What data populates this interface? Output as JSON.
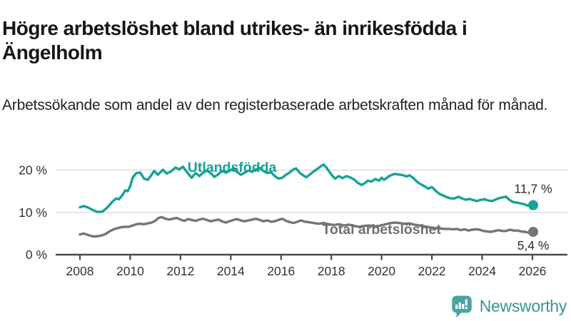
{
  "header": {
    "title": "Högre arbetslöshet bland utrikes- än inrikesfödda i Ängelholm",
    "subtitle": "Arbetssökande som andel av den registerbaserade arbetskraften månad för månad."
  },
  "chart_data": {
    "type": "line",
    "title": "Högre arbetslöshet bland utrikes- än inrikesfödda i Ängelholm",
    "xlabel": "",
    "ylabel": "",
    "grid": "horizontal",
    "x_axis": {
      "ticks": [
        2008,
        2010,
        2012,
        2014,
        2016,
        2018,
        2020,
        2022,
        2024,
        2026
      ],
      "range": [
        2007.0,
        2027.4
      ]
    },
    "y_axis": {
      "tick_values": [
        0,
        10,
        20
      ],
      "tick_labels": [
        "0 %",
        "10 %",
        "20 %"
      ],
      "range": [
        0,
        22
      ]
    },
    "series": [
      {
        "name": "Utlandsfödda",
        "color": "#16a298",
        "end_label": "11,7 %",
        "end_value": 11.7,
        "label_pos": {
          "x": 2014.05,
          "y": 19.6
        },
        "points": [
          [
            2008.0,
            11.2
          ],
          [
            2008.15,
            11.5
          ],
          [
            2008.3,
            11.2
          ],
          [
            2008.5,
            10.6
          ],
          [
            2008.7,
            10.1
          ],
          [
            2008.9,
            10.2
          ],
          [
            2009.1,
            11.2
          ],
          [
            2009.3,
            12.6
          ],
          [
            2009.45,
            13.3
          ],
          [
            2009.55,
            13.1
          ],
          [
            2009.7,
            14.2
          ],
          [
            2009.8,
            15.2
          ],
          [
            2009.9,
            15.0
          ],
          [
            2010.0,
            16.2
          ],
          [
            2010.1,
            18.3
          ],
          [
            2010.25,
            19.3
          ],
          [
            2010.4,
            19.4
          ],
          [
            2010.55,
            18.0
          ],
          [
            2010.7,
            17.7
          ],
          [
            2010.85,
            18.9
          ],
          [
            2010.95,
            19.8
          ],
          [
            2011.1,
            18.9
          ],
          [
            2011.3,
            20.1
          ],
          [
            2011.45,
            19.2
          ],
          [
            2011.6,
            19.6
          ],
          [
            2011.8,
            20.6
          ],
          [
            2011.95,
            20.2
          ],
          [
            2012.1,
            20.8
          ],
          [
            2012.3,
            19.2
          ],
          [
            2012.45,
            18.2
          ],
          [
            2012.6,
            19.3
          ],
          [
            2012.75,
            18.6
          ],
          [
            2012.9,
            19.4
          ],
          [
            2013.05,
            19.9
          ],
          [
            2013.2,
            19.3
          ],
          [
            2013.35,
            18.4
          ],
          [
            2013.5,
            19.0
          ],
          [
            2013.65,
            19.8
          ],
          [
            2013.8,
            19.4
          ],
          [
            2013.95,
            19.8
          ],
          [
            2014.1,
            20.4
          ],
          [
            2014.25,
            19.6
          ],
          [
            2014.4,
            18.9
          ],
          [
            2014.55,
            19.4
          ],
          [
            2014.7,
            19.9
          ],
          [
            2014.85,
            19.6
          ],
          [
            2015.0,
            20.2
          ],
          [
            2015.15,
            20.5
          ],
          [
            2015.3,
            19.8
          ],
          [
            2015.45,
            19.3
          ],
          [
            2015.6,
            19.5
          ],
          [
            2015.75,
            18.6
          ],
          [
            2015.9,
            18.0
          ],
          [
            2016.05,
            18.2
          ],
          [
            2016.2,
            18.9
          ],
          [
            2016.35,
            19.5
          ],
          [
            2016.5,
            20.2
          ],
          [
            2016.6,
            20.4
          ],
          [
            2016.75,
            19.3
          ],
          [
            2016.9,
            18.7
          ],
          [
            2017.0,
            18.3
          ],
          [
            2017.15,
            19.0
          ],
          [
            2017.3,
            19.7
          ],
          [
            2017.45,
            20.3
          ],
          [
            2017.6,
            21.0
          ],
          [
            2017.7,
            21.3
          ],
          [
            2017.8,
            20.6
          ],
          [
            2017.95,
            19.4
          ],
          [
            2018.05,
            18.6
          ],
          [
            2018.15,
            18.0
          ],
          [
            2018.3,
            18.6
          ],
          [
            2018.45,
            18.1
          ],
          [
            2018.6,
            18.6
          ],
          [
            2018.75,
            18.3
          ],
          [
            2018.9,
            17.8
          ],
          [
            2019.05,
            17.0
          ],
          [
            2019.2,
            16.5
          ],
          [
            2019.3,
            16.8
          ],
          [
            2019.45,
            17.5
          ],
          [
            2019.6,
            17.3
          ],
          [
            2019.75,
            17.9
          ],
          [
            2019.9,
            17.5
          ],
          [
            2020.0,
            18.2
          ],
          [
            2020.1,
            17.7
          ],
          [
            2020.3,
            18.6
          ],
          [
            2020.5,
            19.1
          ],
          [
            2020.65,
            19.0
          ],
          [
            2020.85,
            18.8
          ],
          [
            2021.0,
            18.5
          ],
          [
            2021.1,
            18.8
          ],
          [
            2021.25,
            18.2
          ],
          [
            2021.4,
            17.3
          ],
          [
            2021.55,
            16.7
          ],
          [
            2021.7,
            16.2
          ],
          [
            2021.85,
            15.6
          ],
          [
            2022.0,
            16.0
          ],
          [
            2022.15,
            15.1
          ],
          [
            2022.3,
            14.4
          ],
          [
            2022.45,
            14.0
          ],
          [
            2022.6,
            13.6
          ],
          [
            2022.75,
            13.3
          ],
          [
            2022.9,
            13.3
          ],
          [
            2023.05,
            13.7
          ],
          [
            2023.2,
            13.3
          ],
          [
            2023.35,
            13.0
          ],
          [
            2023.5,
            13.2
          ],
          [
            2023.65,
            12.9
          ],
          [
            2023.8,
            12.7
          ],
          [
            2023.95,
            13.0
          ],
          [
            2024.1,
            13.1
          ],
          [
            2024.25,
            12.8
          ],
          [
            2024.4,
            12.7
          ],
          [
            2024.55,
            13.1
          ],
          [
            2024.7,
            13.4
          ],
          [
            2024.85,
            13.6
          ],
          [
            2024.95,
            13.7
          ],
          [
            2025.1,
            12.9
          ],
          [
            2025.25,
            12.4
          ],
          [
            2025.4,
            12.3
          ],
          [
            2025.55,
            12.1
          ],
          [
            2025.7,
            11.9
          ],
          [
            2025.8,
            11.6
          ],
          [
            2025.9,
            11.8
          ],
          [
            2026.03,
            11.7
          ]
        ]
      },
      {
        "name": "Total arbetslöshet",
        "color": "#757479",
        "label_color": "#6f6e74",
        "end_label": "5,4 %",
        "end_value": 5.4,
        "label_pos": {
          "x": 2020.0,
          "y": 4.9
        },
        "points": [
          [
            2008.0,
            4.8
          ],
          [
            2008.15,
            5.0
          ],
          [
            2008.3,
            4.7
          ],
          [
            2008.45,
            4.4
          ],
          [
            2008.6,
            4.3
          ],
          [
            2008.75,
            4.4
          ],
          [
            2008.9,
            4.6
          ],
          [
            2009.05,
            5.0
          ],
          [
            2009.2,
            5.6
          ],
          [
            2009.35,
            6.0
          ],
          [
            2009.5,
            6.3
          ],
          [
            2009.65,
            6.5
          ],
          [
            2009.8,
            6.6
          ],
          [
            2009.95,
            6.6
          ],
          [
            2010.1,
            6.9
          ],
          [
            2010.25,
            7.2
          ],
          [
            2010.4,
            7.3
          ],
          [
            2010.55,
            7.2
          ],
          [
            2010.7,
            7.4
          ],
          [
            2010.85,
            7.6
          ],
          [
            2011.0,
            8.0
          ],
          [
            2011.1,
            8.6
          ],
          [
            2011.25,
            8.9
          ],
          [
            2011.4,
            8.5
          ],
          [
            2011.55,
            8.3
          ],
          [
            2011.7,
            8.5
          ],
          [
            2011.85,
            8.7
          ],
          [
            2012.0,
            8.3
          ],
          [
            2012.15,
            8.0
          ],
          [
            2012.3,
            8.4
          ],
          [
            2012.45,
            8.2
          ],
          [
            2012.6,
            8.0
          ],
          [
            2012.75,
            8.3
          ],
          [
            2012.9,
            8.5
          ],
          [
            2013.05,
            8.2
          ],
          [
            2013.2,
            7.9
          ],
          [
            2013.35,
            8.1
          ],
          [
            2013.5,
            8.3
          ],
          [
            2013.65,
            7.9
          ],
          [
            2013.8,
            7.6
          ],
          [
            2013.95,
            7.9
          ],
          [
            2014.1,
            8.2
          ],
          [
            2014.25,
            8.4
          ],
          [
            2014.4,
            8.1
          ],
          [
            2014.55,
            7.9
          ],
          [
            2014.7,
            8.1
          ],
          [
            2014.85,
            8.3
          ],
          [
            2015.0,
            8.5
          ],
          [
            2015.15,
            8.2
          ],
          [
            2015.3,
            7.9
          ],
          [
            2015.45,
            8.1
          ],
          [
            2015.6,
            7.8
          ],
          [
            2015.75,
            7.9
          ],
          [
            2015.9,
            8.2
          ],
          [
            2016.05,
            8.5
          ],
          [
            2016.2,
            8.0
          ],
          [
            2016.35,
            7.7
          ],
          [
            2016.5,
            7.5
          ],
          [
            2016.65,
            7.8
          ],
          [
            2016.8,
            8.1
          ],
          [
            2016.95,
            7.8
          ],
          [
            2017.1,
            7.7
          ],
          [
            2017.3,
            7.5
          ],
          [
            2017.5,
            7.3
          ],
          [
            2017.7,
            7.5
          ],
          [
            2017.9,
            7.2
          ],
          [
            2018.1,
            7.0
          ],
          [
            2018.3,
            7.2
          ],
          [
            2018.5,
            6.9
          ],
          [
            2018.7,
            7.1
          ],
          [
            2018.9,
            6.8
          ],
          [
            2019.1,
            6.6
          ],
          [
            2019.3,
            6.8
          ],
          [
            2019.5,
            6.9
          ],
          [
            2019.7,
            6.7
          ],
          [
            2019.9,
            6.8
          ],
          [
            2020.1,
            7.1
          ],
          [
            2020.3,
            7.4
          ],
          [
            2020.5,
            7.6
          ],
          [
            2020.7,
            7.5
          ],
          [
            2020.9,
            7.3
          ],
          [
            2021.1,
            7.4
          ],
          [
            2021.3,
            7.1
          ],
          [
            2021.5,
            6.9
          ],
          [
            2021.7,
            6.7
          ],
          [
            2021.9,
            6.5
          ],
          [
            2022.1,
            6.3
          ],
          [
            2022.3,
            6.2
          ],
          [
            2022.5,
            6.1
          ],
          [
            2022.7,
            6.1
          ],
          [
            2022.85,
            6.0
          ],
          [
            2023.0,
            6.1
          ],
          [
            2023.15,
            5.8
          ],
          [
            2023.3,
            6.0
          ],
          [
            2023.45,
            5.7
          ],
          [
            2023.6,
            5.9
          ],
          [
            2023.75,
            6.0
          ],
          [
            2023.9,
            5.9
          ],
          [
            2024.05,
            5.6
          ],
          [
            2024.2,
            5.5
          ],
          [
            2024.35,
            5.4
          ],
          [
            2024.5,
            5.6
          ],
          [
            2024.65,
            5.8
          ],
          [
            2024.8,
            5.6
          ],
          [
            2024.95,
            5.6
          ],
          [
            2025.1,
            5.9
          ],
          [
            2025.25,
            5.7
          ],
          [
            2025.4,
            5.7
          ],
          [
            2025.55,
            5.5
          ],
          [
            2025.7,
            5.4
          ],
          [
            2025.85,
            5.2
          ],
          [
            2026.03,
            5.4
          ]
        ]
      }
    ]
  },
  "footer": {
    "brand": "Newsworthy",
    "brand_color": "#38978e",
    "logo_color": "#4aa59d"
  },
  "colors": {
    "accent_teal": "#16a298",
    "line_gray": "#757479",
    "axis": "#4a4a4a",
    "gridline": "#dedede",
    "text_dark": "#161616"
  }
}
